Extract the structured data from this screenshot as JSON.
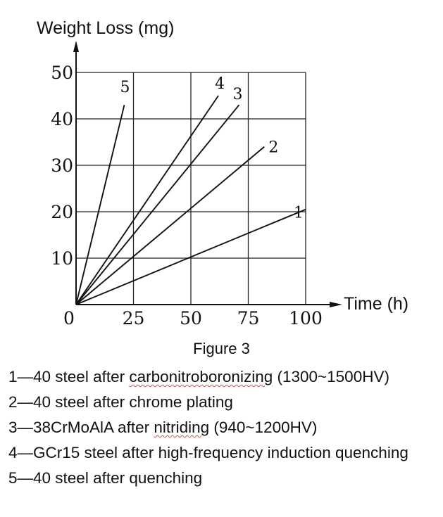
{
  "chart_data": {
    "type": "line",
    "ylabel": "Weight Loss (mg)",
    "xlabel": "Time (h)",
    "xlim": [
      0,
      100
    ],
    "ylim": [
      0,
      50
    ],
    "xticks": [
      0,
      25,
      50,
      75,
      100
    ],
    "yticks": [
      10,
      20,
      30,
      40,
      50
    ],
    "grid": true,
    "series": [
      {
        "name": "1",
        "points": [
          [
            0,
            0
          ],
          [
            100,
            20.5
          ]
        ]
      },
      {
        "name": "2",
        "points": [
          [
            0,
            0
          ],
          [
            82,
            34
          ]
        ]
      },
      {
        "name": "3",
        "points": [
          [
            0,
            0
          ],
          [
            71,
            43
          ]
        ]
      },
      {
        "name": "4",
        "points": [
          [
            0,
            0
          ],
          [
            62,
            45
          ]
        ]
      },
      {
        "name": "5",
        "points": [
          [
            0,
            0
          ],
          [
            21,
            43
          ]
        ]
      }
    ]
  },
  "caption": "Figure 3",
  "legend": [
    {
      "prefix": "1—40 steel after ",
      "underlined": "carbonitroboronizing",
      "suffix": " (1300~1500HV)"
    },
    {
      "prefix": "2—40 steel after chrome plating",
      "underlined": "",
      "suffix": ""
    },
    {
      "prefix": "3—38CrMoAlA after ",
      "underlined": "nitriding",
      "suffix": " (940~1200HV)"
    },
    {
      "prefix": "4—GCr15 steel after high-frequency induction quenching",
      "underlined": "",
      "suffix": ""
    },
    {
      "prefix": "5—40 steel after quenching",
      "underlined": "",
      "suffix": ""
    }
  ]
}
